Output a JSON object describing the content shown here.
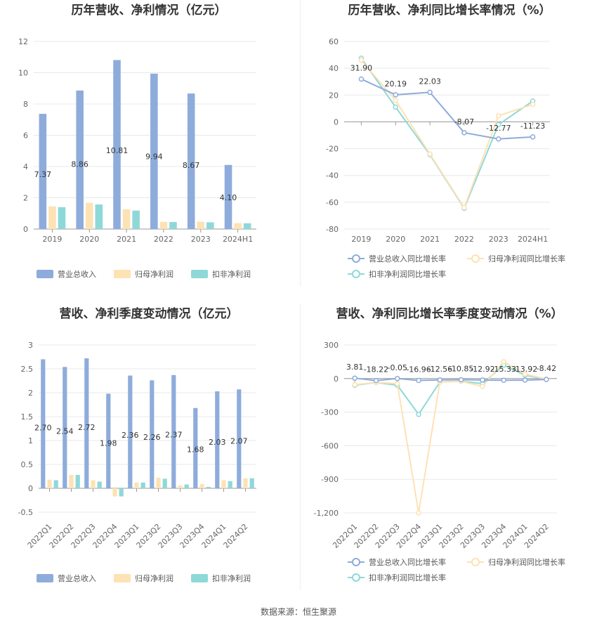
{
  "source": "数据来源：恒生聚源",
  "colors": {
    "revenue": "#8eacdb",
    "net_profit": "#fde2b4",
    "deducted_profit": "#8fd8d8"
  },
  "chart_data": [
    {
      "type": "bar",
      "title": "历年营收、净利情况（亿元）",
      "categories": [
        "2019",
        "2020",
        "2021",
        "2022",
        "2023",
        "2024H1"
      ],
      "ylim": [
        0,
        12
      ],
      "yticks": [
        "0",
        "2",
        "4",
        "6",
        "8",
        "10",
        "12"
      ],
      "legend": "bottom",
      "series": [
        {
          "name": "营业总收入",
          "values": [
            7.37,
            8.86,
            10.81,
            9.94,
            8.67,
            4.1
          ],
          "labels": [
            "7.37",
            "8.86",
            "10.81",
            "9.94",
            "8.67",
            "4.10"
          ]
        },
        {
          "name": "归母净利润",
          "values": [
            1.45,
            1.68,
            1.27,
            0.46,
            0.47,
            0.38
          ]
        },
        {
          "name": "扣非净利润",
          "values": [
            1.4,
            1.57,
            1.18,
            0.45,
            0.43,
            0.37
          ]
        }
      ]
    },
    {
      "type": "line",
      "title": "历年营收、净利同比增长率情况（%）",
      "categories": [
        "2019",
        "2020",
        "2021",
        "2022",
        "2023",
        "2024H1"
      ],
      "ylim": [
        -80,
        60
      ],
      "yticks": [
        "-80",
        "-60",
        "-40",
        "-20",
        "0",
        "20",
        "40",
        "60"
      ],
      "legend": "bottom",
      "series": [
        {
          "name": "营业总收入同比增长率",
          "values": [
            31.9,
            20.19,
            22.03,
            -8.07,
            -12.77,
            -11.23
          ],
          "labels": [
            "31.90",
            "20.19",
            "22.03",
            "-8.07",
            "-12.77",
            "-11.23"
          ]
        },
        {
          "name": "归母净利润同比增长率",
          "values": [
            46,
            16,
            -24,
            -64,
            4.5,
            13
          ]
        },
        {
          "name": "扣非净利润同比增长率",
          "values": [
            47.5,
            11,
            -24.5,
            -64.5,
            -2,
            15.5
          ]
        }
      ]
    },
    {
      "type": "bar",
      "title": "营收、净利季度变动情况（亿元）",
      "categories": [
        "2022Q1",
        "2022Q2",
        "2022Q3",
        "2022Q4",
        "2023Q1",
        "2023Q2",
        "2023Q3",
        "2023Q4",
        "2024Q1",
        "2024Q2"
      ],
      "ylim": [
        -0.5,
        3
      ],
      "yticks": [
        "-0.5",
        "0",
        "0.5",
        "1",
        "1.5",
        "2",
        "2.5",
        "3"
      ],
      "legend": "bottom",
      "series": [
        {
          "name": "营业总收入",
          "values": [
            2.7,
            2.54,
            2.72,
            1.98,
            2.36,
            2.26,
            2.37,
            1.68,
            2.03,
            2.07
          ],
          "labels": [
            "2.70",
            "2.54",
            "2.72",
            "1.98",
            "2.36",
            "2.26",
            "2.37",
            "1.68",
            "2.03",
            "2.07"
          ]
        },
        {
          "name": "归母净利润",
          "values": [
            0.18,
            0.28,
            0.17,
            -0.17,
            0.12,
            0.22,
            0.06,
            0.09,
            0.17,
            0.21
          ]
        },
        {
          "name": "扣非净利润",
          "values": [
            0.17,
            0.28,
            0.14,
            -0.17,
            0.12,
            0.2,
            0.08,
            0.03,
            0.15,
            0.21
          ]
        }
      ]
    },
    {
      "type": "line",
      "title": "营收、净利同比增长率季度变动情况（%）",
      "categories": [
        "2022Q1",
        "2022Q2",
        "2022Q3",
        "2022Q4",
        "2023Q1",
        "2023Q2",
        "2023Q3",
        "2023Q4",
        "2024Q1",
        "2024Q2"
      ],
      "ylim": [
        -1200,
        300
      ],
      "yticks": [
        "-1,200",
        "-900",
        "-600",
        "-300",
        "0",
        "300"
      ],
      "legend": "bottom",
      "series": [
        {
          "name": "营业总收入同比增长率",
          "values": [
            3.81,
            -18.22,
            -0.05,
            -16.96,
            -12.56,
            -10.85,
            -12.92,
            -15.33,
            -13.92,
            -8.42
          ],
          "labels": [
            "3.81",
            "-18.22",
            "-0.05",
            "-16.96",
            "-12.56",
            "-10.85",
            "-12.92",
            "-15.33",
            "-13.92",
            "-8.42"
          ]
        },
        {
          "name": "归母净利润同比增长率",
          "values": [
            -55,
            -35,
            -45,
            -1200,
            -30,
            -25,
            -70,
            150,
            40,
            -5
          ]
        },
        {
          "name": "扣非净利润同比增长率",
          "values": [
            -60,
            -35,
            -60,
            -320,
            -30,
            -25,
            -45,
            120,
            30,
            -5
          ]
        }
      ]
    }
  ]
}
